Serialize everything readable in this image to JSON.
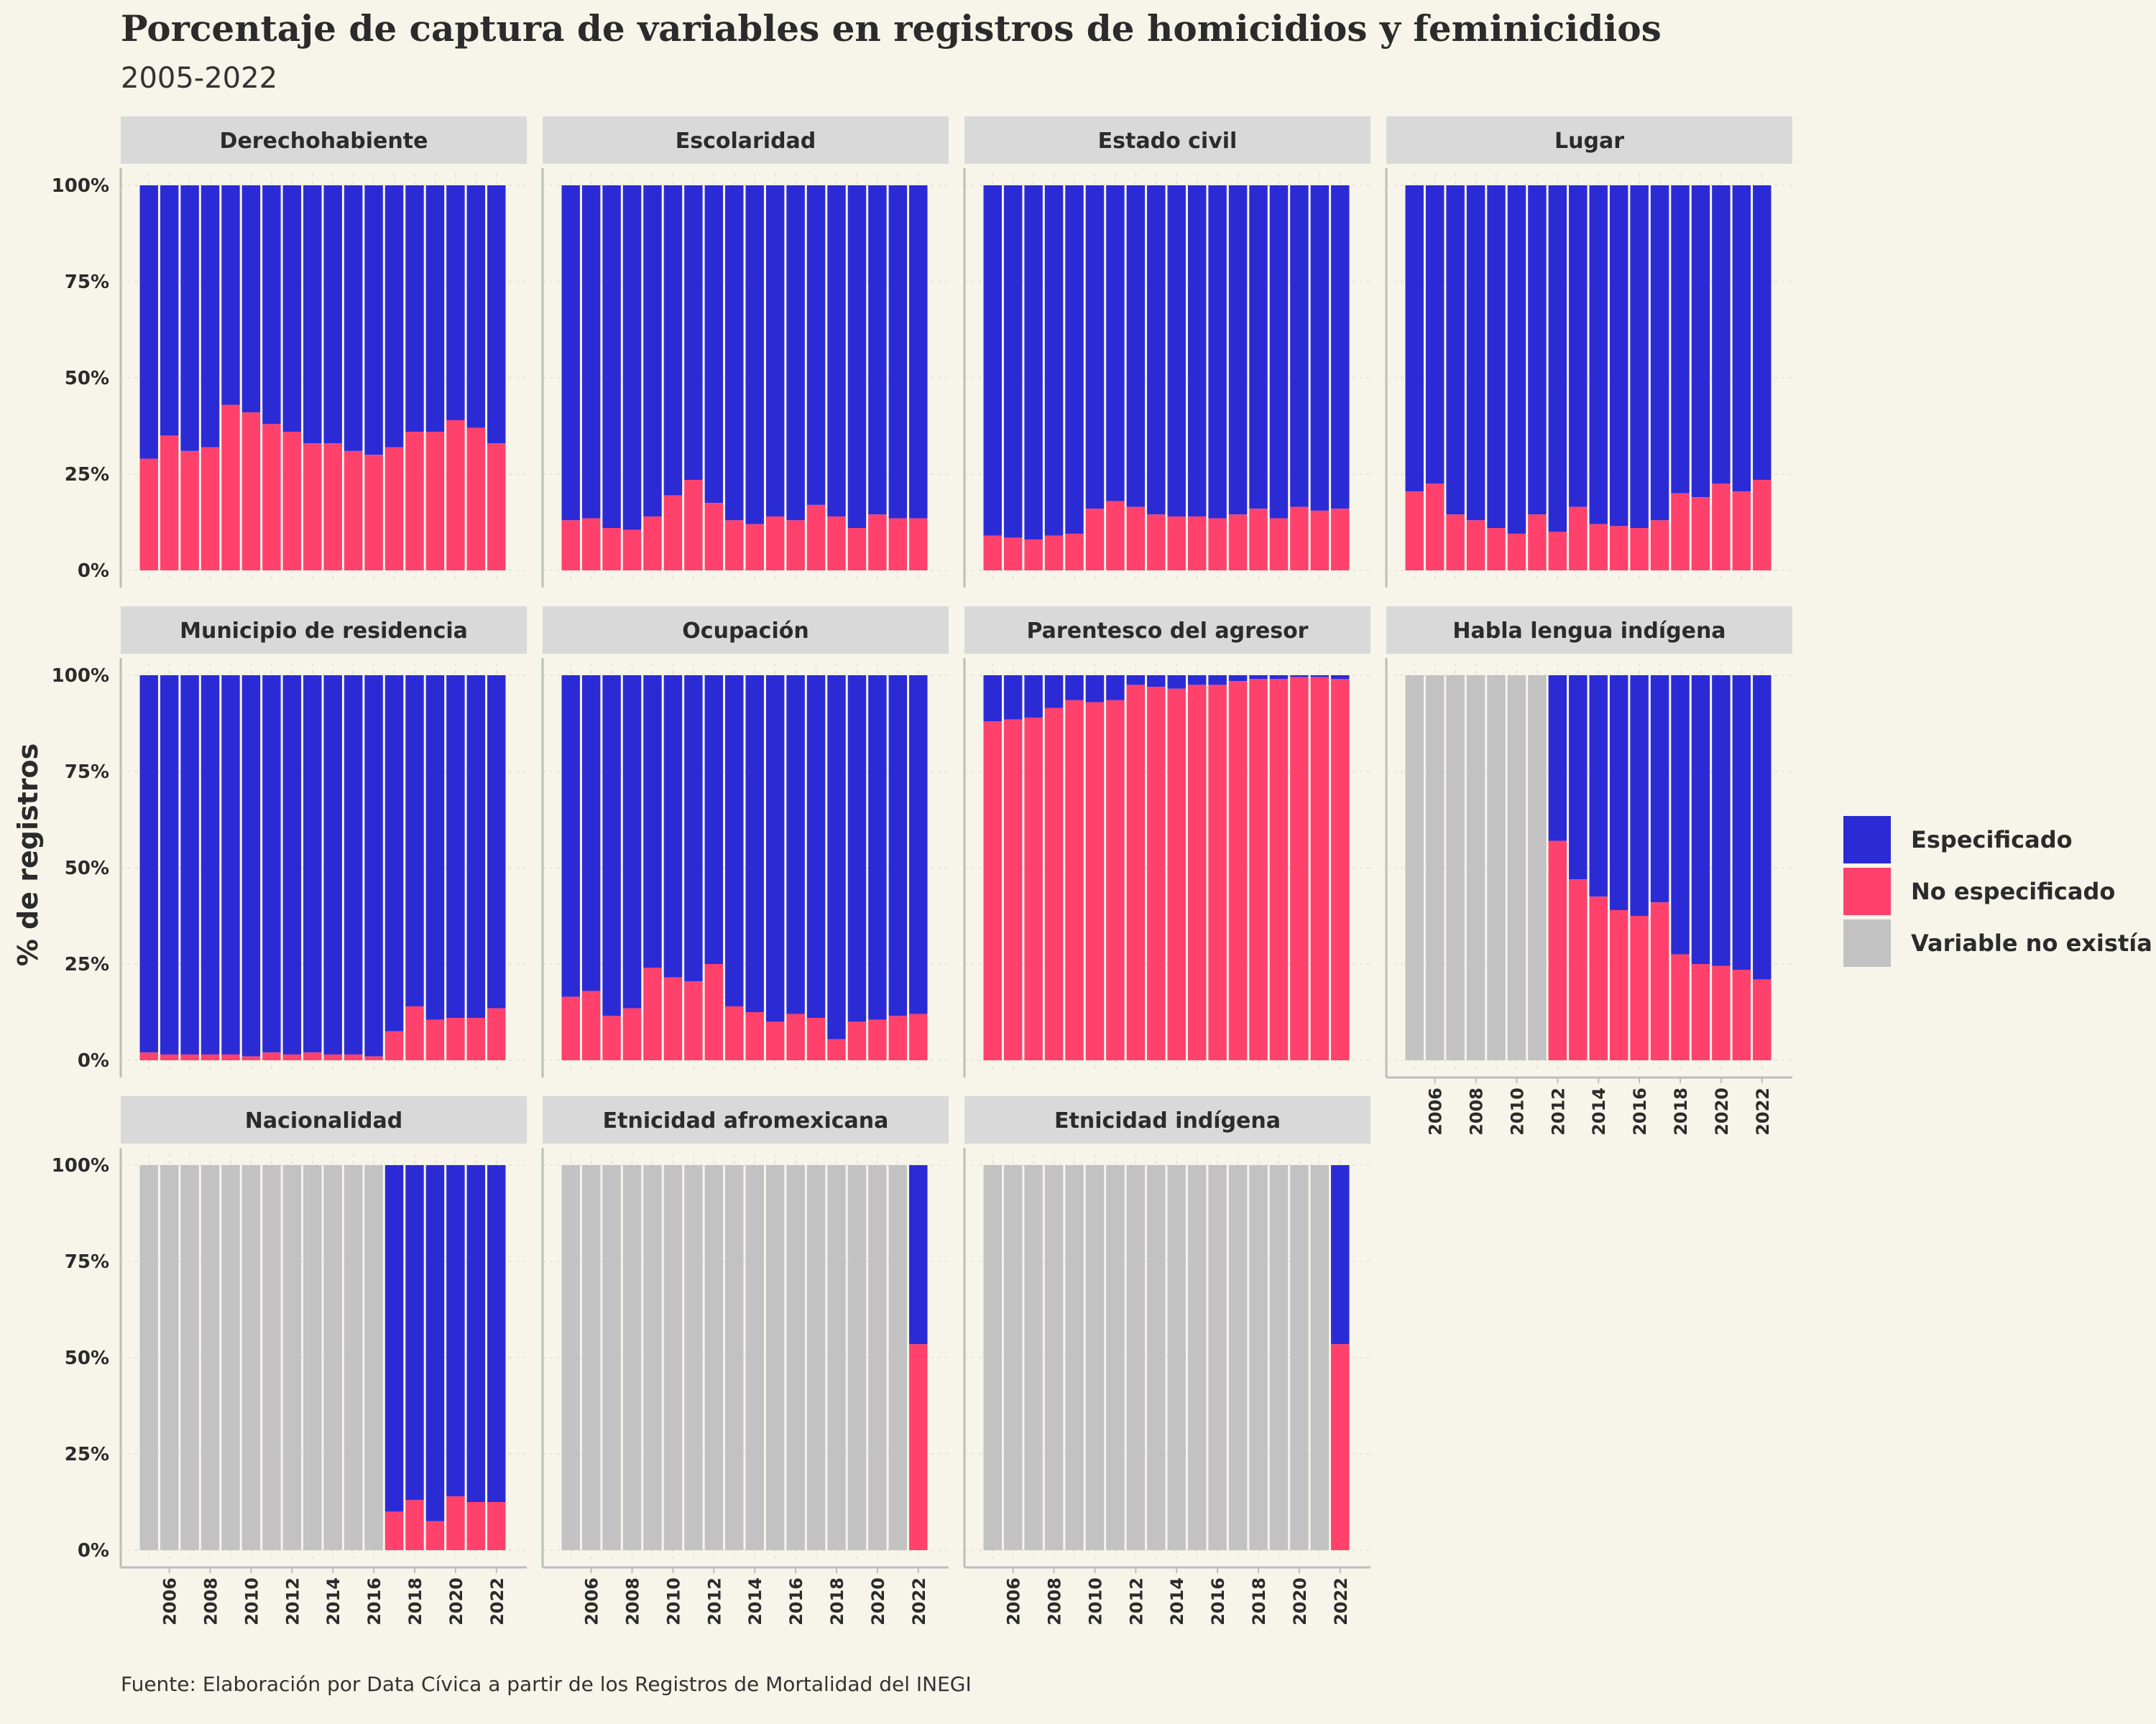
{
  "title": "Porcentaje de captura de variables en registros de homicidios y feminicidios",
  "subtitle": "2005-2022",
  "caption": "Fuente: Elaboración por Data Cívica a partir de los Registros de Mortalidad del INEGI",
  "colors": {
    "Especificado": "#2b2bd6",
    "No especificado": "#ff416c",
    "Variable no existía": "#c2c2c2",
    "background": "#f7f4ea",
    "strip": "#d9d9d9"
  },
  "chart_data": {
    "type": "bar",
    "stacked": true,
    "ylabel": "% de registros",
    "xlabel": "",
    "ylim": [
      0,
      100
    ],
    "y_ticks": [
      "0%",
      "25%",
      "50%",
      "75%",
      "100%"
    ],
    "x_ticks": [
      "2006",
      "2008",
      "2010",
      "2012",
      "2014",
      "2016",
      "2018",
      "2020",
      "2022"
    ],
    "legend": [
      "Especificado",
      "No especificado",
      "Variable no existía"
    ],
    "legend_position": "right",
    "categories": [
      2005,
      2006,
      2007,
      2008,
      2009,
      2010,
      2011,
      2012,
      2013,
      2014,
      2015,
      2016,
      2017,
      2018,
      2019,
      2020,
      2021,
      2022
    ],
    "panels": [
      {
        "name": "Derechohabiente",
        "start": 2005,
        "no_especificado": [
          29,
          35,
          31,
          32,
          43,
          41,
          38,
          36,
          33,
          33,
          31,
          30,
          32,
          36,
          36,
          39,
          37,
          33
        ]
      },
      {
        "name": "Escolaridad",
        "start": 2005,
        "no_especificado": [
          13,
          13.5,
          11,
          10.5,
          14,
          19.5,
          23.5,
          17.5,
          13,
          12,
          14,
          13,
          17,
          14,
          11,
          14.5,
          13.5,
          13.5
        ]
      },
      {
        "name": "Estado civil",
        "start": 2005,
        "no_especificado": [
          9,
          8.5,
          8,
          9,
          9.5,
          16,
          18,
          16.5,
          14.5,
          14,
          14,
          13.5,
          14.5,
          16,
          13.5,
          16.5,
          15.5,
          16
        ]
      },
      {
        "name": "Lugar",
        "start": 2005,
        "no_especificado": [
          20.5,
          22.5,
          14.5,
          13,
          11,
          9.5,
          14.5,
          10,
          16.5,
          12,
          11.5,
          11,
          13,
          20,
          19,
          22.5,
          20.5,
          23.5
        ]
      },
      {
        "name": "Municipio de residencia",
        "start": 2005,
        "no_especificado": [
          2,
          1.5,
          1.5,
          1.5,
          1.5,
          1,
          2,
          1.5,
          2,
          1.5,
          1.5,
          1,
          7.5,
          14,
          10.5,
          11,
          11,
          13.5
        ]
      },
      {
        "name": "Ocupación",
        "start": 2005,
        "no_especificado": [
          16.5,
          18,
          11.5,
          13.5,
          24,
          21.5,
          20.5,
          25,
          14,
          12.5,
          10,
          12,
          11,
          5.5,
          10,
          10.5,
          11.5,
          12
        ]
      },
      {
        "name": "Parentesco del agresor",
        "start": 2005,
        "no_especificado": [
          88,
          88.5,
          89,
          91.5,
          93.5,
          93,
          93.5,
          97.5,
          97,
          96.5,
          97.5,
          97.5,
          98.5,
          99,
          99,
          99.5,
          99.5,
          99
        ]
      },
      {
        "name": "Habla lengua indígena",
        "start": 2012,
        "no_especificado": [
          57,
          47,
          42.5,
          39,
          37.5,
          41,
          27.5,
          25,
          24.5,
          23.5,
          21
        ]
      },
      {
        "name": "Nacionalidad",
        "start": 2017,
        "no_especificado": [
          10,
          13,
          7.5,
          14,
          12.5,
          12.5
        ]
      },
      {
        "name": "Etnicidad afromexicana",
        "start": 2022,
        "no_especificado": [
          53.5
        ]
      },
      {
        "name": "Etnicidad indígena",
        "start": 2022,
        "no_especificado": [
          53.5
        ]
      }
    ]
  }
}
